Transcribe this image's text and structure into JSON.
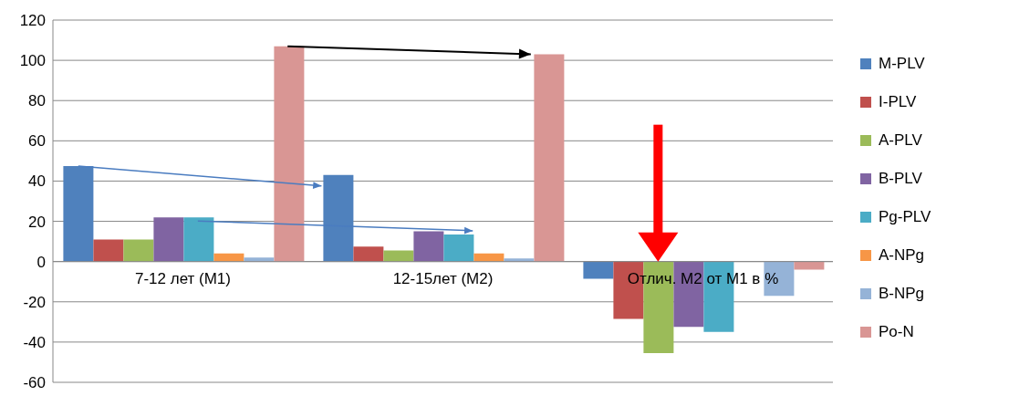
{
  "chart_data": {
    "type": "bar",
    "categories": [
      "7-12 лет (М1)",
      "12-15лет (М2)",
      "Отлич. М2 от М1 в %"
    ],
    "series": [
      {
        "name": "M-PLV",
        "color": "#4f81bd",
        "values": [
          47.5,
          43,
          -8.5
        ]
      },
      {
        "name": "I-PLV",
        "color": "#c0504d",
        "values": [
          11,
          7.5,
          -28.5
        ]
      },
      {
        "name": "A-PLV",
        "color": "#9bbb59",
        "values": [
          11,
          5.5,
          -45.5
        ]
      },
      {
        "name": "B-PLV",
        "color": "#8064a2",
        "values": [
          22,
          15,
          -32.5
        ]
      },
      {
        "name": "Pg-PLV",
        "color": "#4bacc6",
        "values": [
          22,
          13.5,
          -35
        ]
      },
      {
        "name": "A-NPg",
        "color": "#f79646",
        "values": [
          4,
          4,
          0
        ]
      },
      {
        "name": "B-NPg",
        "color": "#95b3d7",
        "values": [
          2,
          1.5,
          -17
        ]
      },
      {
        "name": "Po-N",
        "color": "#d99694",
        "values": [
          107,
          103,
          -4
        ]
      }
    ],
    "ylim": [
      -60,
      120
    ],
    "yticks": [
      -60,
      -40,
      -20,
      0,
      20,
      40,
      60,
      80,
      100,
      120
    ],
    "grid": "y",
    "legend": "right"
  }
}
